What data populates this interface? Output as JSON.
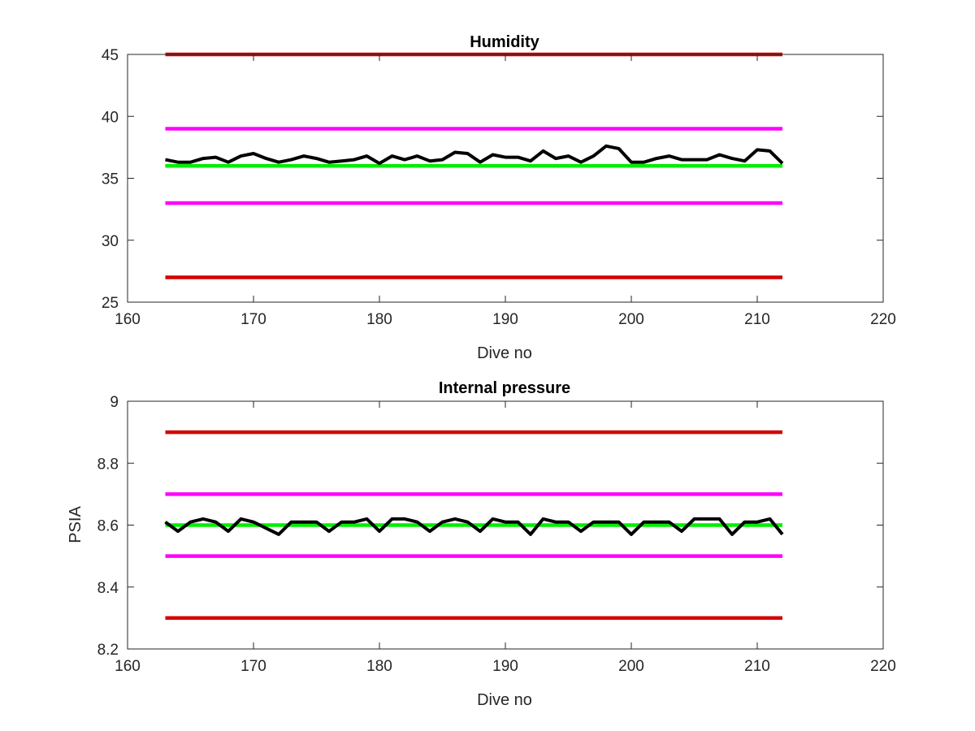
{
  "colors": {
    "limit_outer": "#d40000",
    "limit_inner": "#ff00ff",
    "nominal": "#00ee00",
    "measurement": "#000000",
    "axis": "#262626",
    "background": "#ffffff"
  },
  "chart_data": [
    {
      "type": "line",
      "title": "Humidity",
      "xlabel": "Dive no",
      "ylabel": "",
      "xlim": [
        160,
        220
      ],
      "ylim": [
        25,
        45
      ],
      "xticks": [
        160,
        170,
        180,
        190,
        200,
        210,
        220
      ],
      "yticks": [
        25,
        30,
        35,
        40,
        45
      ],
      "xtick_labels": [
        "160",
        "170",
        "180",
        "190",
        "200",
        "210",
        "220"
      ],
      "ytick_labels": [
        "25",
        "30",
        "35",
        "40",
        "45"
      ],
      "grid": false,
      "series": [
        {
          "role": "limit_outer",
          "x": [
            163,
            212
          ],
          "values": [
            45,
            45
          ]
        },
        {
          "role": "limit_inner",
          "x": [
            163,
            212
          ],
          "values": [
            39,
            39
          ]
        },
        {
          "role": "nominal",
          "x": [
            163,
            212
          ],
          "values": [
            36,
            36
          ]
        },
        {
          "role": "limit_inner",
          "x": [
            163,
            212
          ],
          "values": [
            33,
            33
          ]
        },
        {
          "role": "limit_outer",
          "x": [
            163,
            212
          ],
          "values": [
            27,
            27
          ]
        },
        {
          "role": "measurement",
          "x": [
            163,
            164,
            165,
            166,
            167,
            168,
            169,
            170,
            171,
            172,
            173,
            174,
            175,
            176,
            177,
            178,
            179,
            180,
            181,
            182,
            183,
            184,
            185,
            186,
            187,
            188,
            189,
            190,
            191,
            192,
            193,
            194,
            195,
            196,
            197,
            198,
            199,
            200,
            201,
            202,
            203,
            204,
            205,
            206,
            207,
            208,
            209,
            210,
            211,
            212
          ],
          "values": [
            36.5,
            36.3,
            36.3,
            36.6,
            36.7,
            36.3,
            36.8,
            37.0,
            36.6,
            36.3,
            36.5,
            36.8,
            36.6,
            36.3,
            36.4,
            36.5,
            36.8,
            36.2,
            36.8,
            36.5,
            36.8,
            36.4,
            36.5,
            37.1,
            37.0,
            36.3,
            36.9,
            36.7,
            36.7,
            36.4,
            37.2,
            36.6,
            36.8,
            36.3,
            36.8,
            37.6,
            37.4,
            36.3,
            36.3,
            36.6,
            36.8,
            36.5,
            36.5,
            36.5,
            36.9,
            36.6,
            36.4,
            37.3,
            37.2,
            36.2
          ]
        }
      ]
    },
    {
      "type": "line",
      "title": "Internal pressure",
      "xlabel": "Dive no",
      "ylabel": "PSIA",
      "xlim": [
        160,
        220
      ],
      "ylim": [
        8.2,
        9.0
      ],
      "xticks": [
        160,
        170,
        180,
        190,
        200,
        210,
        220
      ],
      "yticks": [
        8.2,
        8.4,
        8.6,
        8.8,
        9.0
      ],
      "xtick_labels": [
        "160",
        "170",
        "180",
        "190",
        "200",
        "210",
        "220"
      ],
      "ytick_labels": [
        "8.2",
        "8.4",
        "8.6",
        "8.8",
        "9"
      ],
      "grid": false,
      "series": [
        {
          "role": "limit_outer",
          "x": [
            163,
            212
          ],
          "values": [
            8.9,
            8.9
          ]
        },
        {
          "role": "limit_inner",
          "x": [
            163,
            212
          ],
          "values": [
            8.7,
            8.7
          ]
        },
        {
          "role": "nominal",
          "x": [
            163,
            212
          ],
          "values": [
            8.6,
            8.6
          ]
        },
        {
          "role": "limit_inner",
          "x": [
            163,
            212
          ],
          "values": [
            8.5,
            8.5
          ]
        },
        {
          "role": "limit_outer",
          "x": [
            163,
            212
          ],
          "values": [
            8.3,
            8.3
          ]
        },
        {
          "role": "measurement",
          "x": [
            163,
            164,
            165,
            166,
            167,
            168,
            169,
            170,
            171,
            172,
            173,
            174,
            175,
            176,
            177,
            178,
            179,
            180,
            181,
            182,
            183,
            184,
            185,
            186,
            187,
            188,
            189,
            190,
            191,
            192,
            193,
            194,
            195,
            196,
            197,
            198,
            199,
            200,
            201,
            202,
            203,
            204,
            205,
            206,
            207,
            208,
            209,
            210,
            211,
            212
          ],
          "values": [
            8.61,
            8.58,
            8.61,
            8.62,
            8.61,
            8.58,
            8.62,
            8.61,
            8.59,
            8.57,
            8.61,
            8.61,
            8.61,
            8.58,
            8.61,
            8.61,
            8.62,
            8.58,
            8.62,
            8.62,
            8.61,
            8.58,
            8.61,
            8.62,
            8.61,
            8.58,
            8.62,
            8.61,
            8.61,
            8.57,
            8.62,
            8.61,
            8.61,
            8.58,
            8.61,
            8.61,
            8.61,
            8.57,
            8.61,
            8.61,
            8.61,
            8.58,
            8.62,
            8.62,
            8.62,
            8.57,
            8.61,
            8.61,
            8.62,
            8.57
          ]
        }
      ]
    }
  ]
}
